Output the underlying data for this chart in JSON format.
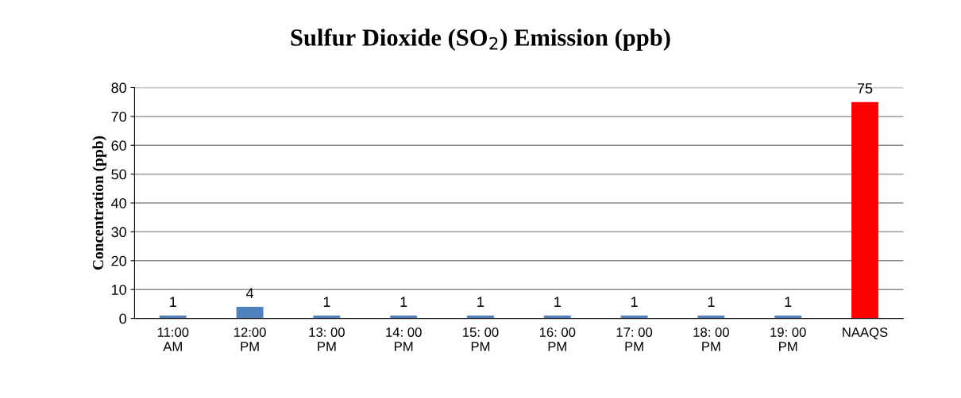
{
  "chart_data": {
    "type": "bar",
    "title": "Sulfur Dioxide (SO$_{2}$) Emission (ppb)",
    "ylabel": "Concentration (ppb)",
    "categories": [
      "11:00\nAM",
      "12:00\nPM",
      "13: 00\nPM",
      "14: 00\nPM",
      "15: 00\nPM",
      "16: 00\nPM",
      "17: 00\nPM",
      "18: 00\nPM",
      "19: 00\nPM",
      "NAAQS"
    ],
    "values": [
      1,
      4,
      1,
      1,
      1,
      1,
      1,
      1,
      1,
      75
    ],
    "colors": [
      "#4f81bd",
      "#4f81bd",
      "#4f81bd",
      "#4f81bd",
      "#4f81bd",
      "#4f81bd",
      "#4f81bd",
      "#4f81bd",
      "#4f81bd",
      "#ff0000"
    ],
    "ylim": [
      0,
      80
    ],
    "yticks": [
      0,
      10,
      20,
      30,
      40,
      50,
      60,
      70,
      80
    ],
    "grid": "y",
    "data_labels": true,
    "legend": false
  }
}
